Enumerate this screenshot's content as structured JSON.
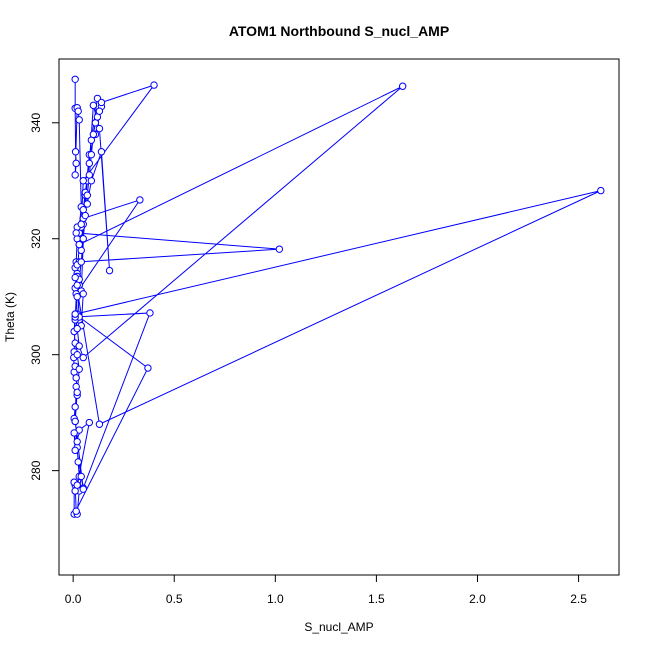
{
  "chart_data": {
    "type": "line",
    "title": "ATOM1 Northbound S_nucl_AMP",
    "xlabel": "S_nucl_AMP",
    "ylabel": "Theta (K)",
    "xlim": [
      -0.07,
      2.7
    ],
    "ylim": [
      262,
      351
    ],
    "xticks": [
      0.0,
      0.5,
      1.0,
      1.5,
      2.0,
      2.5
    ],
    "xtick_labels": [
      "0.0",
      "0.5",
      "1.0",
      "1.5",
      "2.0",
      "2.5"
    ],
    "yticks": [
      280,
      300,
      320,
      340
    ],
    "ytick_labels": [
      "280",
      "300",
      "320",
      "340"
    ],
    "grid": false,
    "line_color": "#0000ff",
    "marker": "open-circle",
    "series": [
      {
        "x": [
          0.01,
          0.01,
          0.012,
          0.015,
          0.01,
          0.02,
          0.025,
          0.03,
          0.04,
          0.03,
          0.02,
          0.015,
          0.01,
          0.02,
          0.03,
          0.04,
          0.06,
          0.08,
          0.11,
          0.14,
          0.12,
          0.09,
          0.07,
          0.05,
          0.04,
          0.03,
          0.05,
          0.07,
          0.09,
          0.14,
          0.18,
          0.13,
          0.1,
          0.08,
          0.06,
          0.05,
          0.04,
          0.03,
          0.02,
          0.015,
          0.33,
          0.05,
          0.02,
          0.015,
          1.02,
          0.03,
          0.02,
          0.01,
          0.015,
          0.02,
          0.03,
          0.04,
          0.05,
          0.03,
          0.02,
          0.01,
          0.005,
          0.003,
          0.005,
          0.01,
          0.015,
          0.02,
          0.015,
          0.01,
          0.005,
          0.01,
          0.015,
          0.02,
          0.025,
          0.03,
          0.02,
          0.01,
          0.005,
          0.005,
          0.37,
          0.03,
          0.02,
          0.01,
          0.38,
          0.05,
          0.04,
          0.03,
          0.02,
          0.015,
          0.01,
          0.005,
          0.01,
          0.02,
          0.08,
          0.03,
          0.02,
          0.01,
          0.005,
          0.05,
          0.01,
          0.02,
          0.03,
          0.02,
          0.01,
          0.005,
          0.01,
          0.02,
          0.03,
          0.04,
          0.05,
          0.06,
          0.07,
          0.08,
          0.09,
          0.1,
          0.11,
          0.12,
          0.13,
          0.14,
          0.4,
          0.05,
          0.04,
          0.03,
          1.63,
          0.05,
          0.03,
          0.02,
          0.01,
          2.61,
          0.13,
          0.01
        ],
        "y": [
          347.5,
          342.5,
          335,
          333,
          331,
          342.6,
          342,
          340.5,
          325.5,
          322,
          320,
          316,
          315,
          314,
          312,
          311,
          327.5,
          334.5,
          338,
          342.8,
          344.2,
          337,
          330,
          322.5,
          318,
          321,
          323.5,
          326,
          330,
          335,
          314.5,
          339,
          343,
          333,
          328,
          325,
          322,
          319,
          313.5,
          310.5,
          326.7,
          323.5,
          322,
          321,
          318.2,
          316,
          315.5,
          311.5,
          310.5,
          307,
          306,
          305,
          310.5,
          312,
          313.5,
          306,
          300.5,
          299.5,
          297,
          298,
          296,
          293,
          294.5,
          288.5,
          289,
          291,
          286.5,
          284,
          281.5,
          279,
          277.5,
          276.5,
          278,
          272.5,
          297.7,
          306.5,
          312,
          306.5,
          307.2,
          277,
          279,
          276.5,
          272.5,
          273,
          277.5,
          278,
          276.5,
          277.5,
          288.3,
          287,
          285,
          283.5,
          286.5,
          276.8,
          288.5,
          293.5,
          297.5,
          300,
          302,
          304,
          307,
          310,
          313,
          316,
          320,
          324,
          327.5,
          331,
          334.5,
          338,
          340,
          341,
          342,
          343.5,
          346.5,
          330,
          322.5,
          319,
          346.3,
          299.5,
          301.5,
          304.5,
          307,
          328.3,
          288,
          313.3
        ]
      }
    ]
  }
}
